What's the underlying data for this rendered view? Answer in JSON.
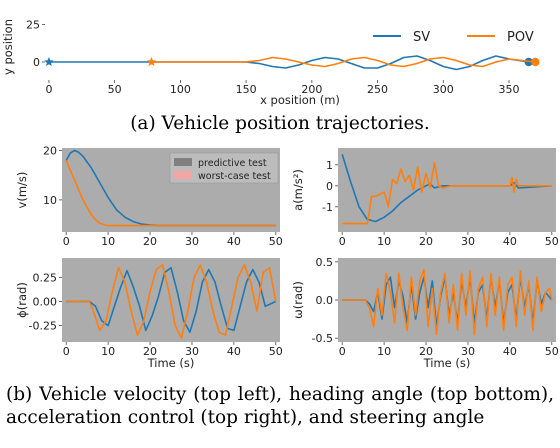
{
  "captions": {
    "a": "(a) Vehicle position trajectories.",
    "b": "(b) Vehicle velocity (top left), heading angle (top bottom), acceleration control (top right), and steering angle"
  },
  "colors": {
    "sv": "#1f77b4",
    "pov": "#ff7f0e",
    "panel_bg": "#acacac",
    "predictive": "#808080",
    "worstcase": "#f4a6a6"
  },
  "chart_data": [
    {
      "id": "trajectory",
      "type": "line",
      "xlabel": "x position (m)",
      "ylabel": "y position",
      "xlim": [
        -3,
        385
      ],
      "ylim": [
        -12,
        32
      ],
      "xticks": [
        0,
        50,
        100,
        150,
        200,
        250,
        300,
        350
      ],
      "yticks": [
        0,
        25
      ],
      "legend": {
        "placement": "top-right",
        "entries": [
          "SV",
          "POV"
        ]
      },
      "series": [
        {
          "name": "SV",
          "start_marker": "star",
          "end_marker": "circle",
          "x": [
            0,
            150,
            160,
            170,
            180,
            190,
            200,
            210,
            220,
            230,
            240,
            250,
            260,
            270,
            280,
            290,
            300,
            310,
            320,
            330,
            340,
            350,
            365
          ],
          "y": [
            0,
            0,
            -1,
            -3,
            -4,
            -2,
            1,
            3,
            2,
            -1,
            -4,
            -4,
            -1,
            3,
            4,
            1,
            -3,
            -5,
            -3,
            1,
            4,
            2,
            0
          ]
        },
        {
          "name": "POV",
          "start_marker": "star",
          "end_marker": "circle",
          "x": [
            78,
            150,
            160,
            170,
            180,
            190,
            200,
            210,
            220,
            230,
            240,
            250,
            260,
            270,
            280,
            290,
            300,
            310,
            320,
            330,
            340,
            350,
            370
          ],
          "y": [
            0,
            0,
            1,
            3,
            2,
            0,
            -2,
            -3,
            -1,
            2,
            3,
            1,
            -2,
            -3,
            -1,
            2,
            3,
            1,
            -2,
            -3,
            0,
            2,
            0
          ]
        }
      ]
    },
    {
      "id": "velocity",
      "type": "line",
      "ylabel": "v(m/s)",
      "xlim": [
        -1,
        51
      ],
      "ylim": [
        3.5,
        20.5
      ],
      "xticks": [
        0,
        10,
        20,
        30,
        40,
        50
      ],
      "yticks": [
        10,
        20
      ],
      "legend": {
        "placement": "top-right",
        "entries": [
          "predictive test",
          "worst-case test"
        ]
      },
      "series": [
        {
          "name": "SV",
          "x": [
            0,
            1,
            2,
            3,
            4,
            6,
            8,
            10,
            12,
            14,
            16,
            18,
            20,
            22,
            25,
            30,
            50
          ],
          "y": [
            18,
            19.5,
            20,
            19.6,
            18.8,
            16.5,
            13.5,
            10.5,
            8,
            6.5,
            5.6,
            5.1,
            4.9,
            4.8,
            4.8,
            4.8,
            4.8
          ]
        },
        {
          "name": "POV",
          "x": [
            0,
            2,
            4,
            6,
            7,
            8,
            9,
            10,
            50
          ],
          "y": [
            18,
            14,
            10,
            7,
            6,
            5.3,
            5,
            4.8,
            4.8
          ]
        }
      ]
    },
    {
      "id": "acceleration",
      "type": "line",
      "ylabel": "a(m/s²)",
      "xlim": [
        -1,
        51
      ],
      "ylim": [
        -2.2,
        1.8
      ],
      "xticks": [
        0,
        10,
        20,
        30,
        40,
        50
      ],
      "yticks": [
        -1,
        0,
        1
      ],
      "series": [
        {
          "name": "SV",
          "x": [
            0,
            2,
            4,
            6,
            8,
            10,
            12,
            14,
            16,
            18,
            20,
            21,
            22,
            24,
            26,
            30,
            40,
            41,
            42,
            50
          ],
          "y": [
            1.5,
            0.2,
            -1,
            -1.6,
            -1.7,
            -1.5,
            -1.2,
            -0.8,
            -0.5,
            -0.2,
            0,
            0.1,
            -0.1,
            0,
            0,
            0,
            0,
            0.15,
            -0.1,
            0
          ]
        },
        {
          "name": "POV",
          "x": [
            0,
            6,
            6.5,
            7,
            8,
            10,
            10.5,
            11,
            12,
            13,
            14,
            15,
            16,
            17,
            18,
            19,
            20,
            21,
            22,
            23,
            24,
            26,
            30,
            40,
            40.5,
            41,
            41.5,
            42,
            50
          ],
          "y": [
            -1.8,
            -1.8,
            -1.2,
            -0.5,
            -0.5,
            -0.3,
            -0.6,
            -1,
            0.3,
            0.1,
            0.8,
            0.2,
            0.5,
            -0.2,
            0.9,
            -0.3,
            0.6,
            -0.1,
            1.1,
            0,
            -0.1,
            0,
            0,
            0,
            0.4,
            -0.3,
            0.3,
            0,
            0
          ]
        }
      ]
    },
    {
      "id": "heading",
      "type": "line",
      "xlabel": "Time (s)",
      "ylabel": "ϕ(rad)",
      "xlim": [
        -1,
        51
      ],
      "ylim": [
        -0.42,
        0.45
      ],
      "xticks": [
        0,
        10,
        20,
        30,
        40,
        50
      ],
      "yticks": [
        -0.25,
        0.0,
        0.25
      ],
      "series": [
        {
          "name": "SV",
          "x": [
            0,
            5.5,
            7,
            8.5,
            10,
            11.5,
            13,
            14.5,
            16,
            17.5,
            19,
            20.5,
            22,
            23.5,
            25,
            26.5,
            28,
            29.5,
            31,
            32.5,
            34,
            35.5,
            37,
            38.5,
            40,
            41.5,
            43,
            44.5,
            46,
            47.5,
            49,
            50
          ],
          "y": [
            0,
            0,
            -0.05,
            -0.2,
            -0.25,
            -0.05,
            0.15,
            0.32,
            0.15,
            -0.05,
            -0.3,
            -0.15,
            0.05,
            0.3,
            0.35,
            0.1,
            -0.2,
            -0.32,
            -0.1,
            0.2,
            0.33,
            0.2,
            -0.05,
            -0.28,
            -0.3,
            -0.05,
            0.2,
            0.33,
            0.2,
            -0.05,
            -0.02,
            0
          ]
        },
        {
          "name": "POV",
          "x": [
            0,
            5.5,
            6.5,
            8,
            9.5,
            11,
            12.5,
            14,
            15.5,
            17,
            18.5,
            20,
            21.5,
            23,
            24.5,
            26,
            27.5,
            29,
            30.5,
            32,
            33.5,
            35,
            36.5,
            38,
            39.5,
            41,
            42.5,
            44,
            45.5,
            47,
            48.5,
            50
          ],
          "y": [
            0,
            0,
            -0.1,
            -0.3,
            -0.2,
            0.1,
            0.35,
            0.2,
            -0.1,
            -0.35,
            -0.2,
            0.1,
            0.33,
            0.38,
            0.1,
            -0.25,
            -0.38,
            -0.1,
            0.25,
            0.38,
            0.2,
            -0.1,
            -0.32,
            -0.35,
            -0.05,
            0.25,
            0.38,
            0.2,
            -0.1,
            0.3,
            0.35,
            0
          ]
        }
      ]
    },
    {
      "id": "steering",
      "type": "line",
      "xlabel": "Time (s)",
      "ylabel": "ω(rad)",
      "xlim": [
        -1,
        51
      ],
      "ylim": [
        -0.55,
        0.55
      ],
      "xticks": [
        0,
        10,
        20,
        30,
        40,
        50
      ],
      "yticks": [
        -0.5,
        0.0,
        0.5
      ],
      "series": [
        {
          "name": "SV",
          "x": [
            0,
            5.5,
            6.5,
            7.5,
            8.5,
            9.5,
            10.5,
            11.5,
            12.5,
            13.5,
            14.5,
            15.5,
            16.5,
            17.5,
            18.5,
            19.5,
            20.5,
            21.5,
            22.5,
            23.5,
            24.5,
            25.5,
            26.5,
            27.5,
            28.5,
            29.5,
            30.5,
            31.5,
            32.5,
            33.5,
            34.5,
            35.5,
            36.5,
            37.5,
            38.5,
            39.5,
            40.5,
            41.5,
            42.5,
            43.5,
            44.5,
            45.5,
            46.5,
            47.5,
            48.5,
            50
          ],
          "y": [
            0,
            0,
            -0.05,
            -0.15,
            0.1,
            -0.25,
            0.2,
            0.3,
            -0.1,
            0.25,
            0.05,
            -0.3,
            0.2,
            -0.25,
            0.1,
            0.3,
            -0.1,
            0.25,
            -0.35,
            0.05,
            0.3,
            -0.2,
            0.1,
            -0.3,
            0.25,
            -0.1,
            0.3,
            -0.3,
            0.1,
            0.2,
            -0.25,
            0.3,
            -0.1,
            0.25,
            -0.3,
            0.1,
            0.2,
            -0.25,
            0.3,
            -0.1,
            0.2,
            -0.3,
            0.25,
            -0.05,
            0.1,
            0
          ]
        },
        {
          "name": "POV",
          "x": [
            0,
            5.5,
            6.5,
            7.5,
            8.5,
            9.5,
            10.5,
            11.5,
            12.5,
            13.5,
            14.5,
            15.5,
            16.5,
            17.5,
            18.5,
            19.5,
            20.5,
            21.5,
            22.5,
            23.5,
            24.5,
            25.5,
            26.5,
            27.5,
            28.5,
            29.5,
            30.5,
            31.5,
            32.5,
            33.5,
            34.5,
            35.5,
            36.5,
            37.5,
            38.5,
            39.5,
            40.5,
            41.5,
            42.5,
            43.5,
            44.5,
            45.5,
            46.5,
            47.5,
            48.5,
            49.5,
            50
          ],
          "y": [
            0,
            0,
            -0.1,
            -0.35,
            0.15,
            -0.2,
            0.35,
            0.1,
            -0.3,
            0.35,
            -0.1,
            -0.4,
            0.3,
            -0.2,
            0.25,
            0.4,
            -0.35,
            0.15,
            -0.45,
            0.1,
            0.35,
            -0.3,
            0.2,
            -0.4,
            0.35,
            -0.2,
            0.38,
            -0.45,
            0.15,
            0.3,
            -0.35,
            0.35,
            -0.2,
            0.3,
            -0.4,
            0.2,
            0.3,
            -0.35,
            0.38,
            -0.2,
            0.25,
            -0.4,
            0.3,
            -0.15,
            0.1,
            0.15,
            0
          ]
        }
      ]
    }
  ]
}
